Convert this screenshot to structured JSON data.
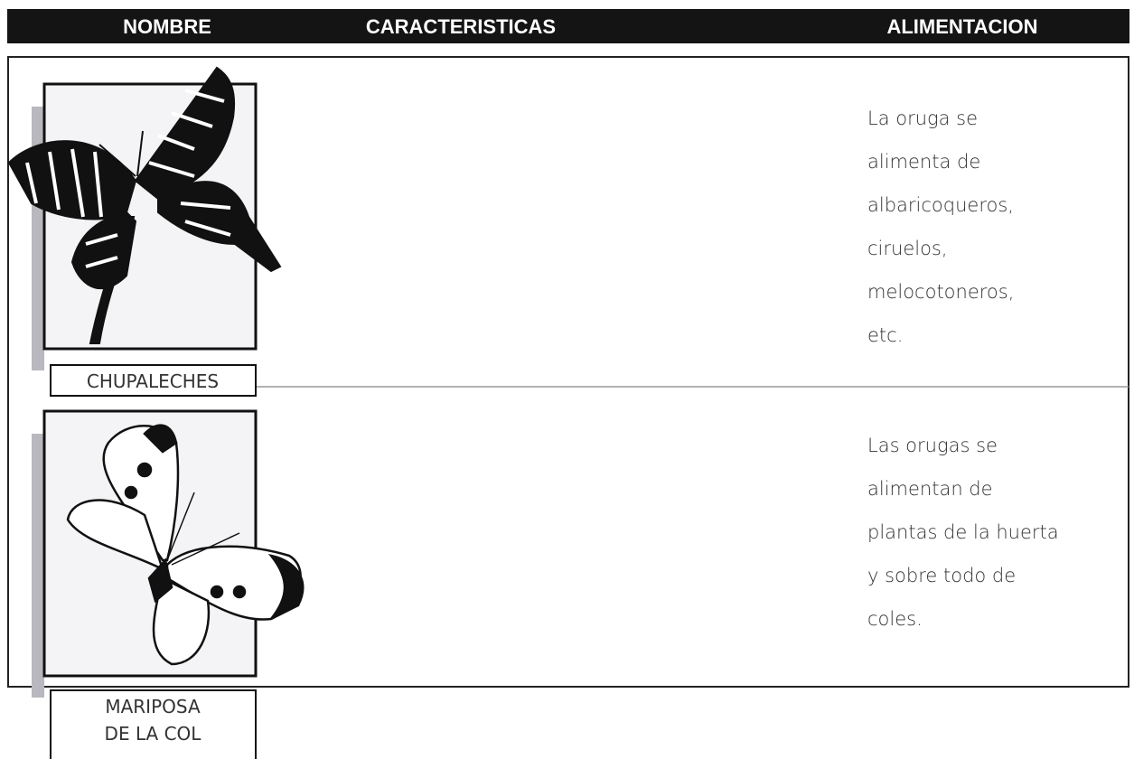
{
  "header": {
    "columns": [
      "NOMBRE",
      "CARACTERISTICAS",
      "ALIMENTACION"
    ]
  },
  "rows": [
    {
      "name_lines": [
        "CHUPALECHES"
      ],
      "food_lines": [
        "La oruga se",
        "alimenta de",
        "albaricoqueros,",
        "ciruelos,",
        "melocotoneros,",
        "etc."
      ]
    },
    {
      "name_lines": [
        "MARIPOSA",
        "DE LA COL"
      ],
      "food_lines": [
        "Las orugas se",
        "alimentan de",
        "plantas de la huerta",
        "y sobre todo de",
        "coles."
      ]
    }
  ]
}
